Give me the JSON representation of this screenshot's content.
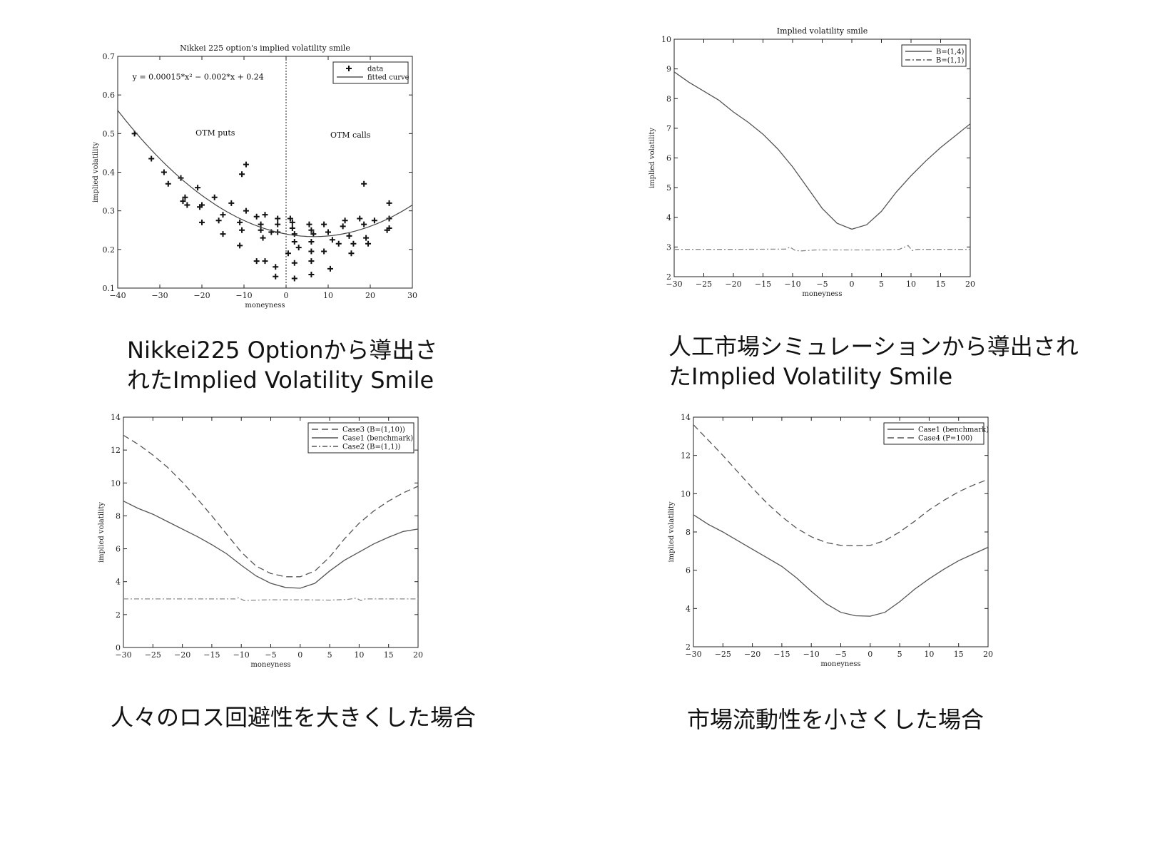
{
  "captions": {
    "c1": "Nikkei225 Optionから導出されたImplied Volatility Smile",
    "c1_line1": "Nikkei225 Optionから導出さ",
    "c1_line2": "れたImplied Volatility Smile",
    "c2_line1": "人工市場シミュレーションから導出され",
    "c2_line2": "たImplied Volatility Smile",
    "c3": "人々のロス回避性を大きくした場合",
    "c4": "市場流動性を小さくした場合"
  },
  "chart_data": [
    {
      "type": "scatter",
      "title": "Nikkei 225 option's implied volatility smile",
      "xlabel": "moneyness",
      "ylabel": "implied volatility",
      "xlim": [
        -40,
        30
      ],
      "ylim": [
        0.1,
        0.7
      ],
      "xticks": [
        -40,
        -30,
        -20,
        -10,
        0,
        10,
        20,
        30
      ],
      "yticks": [
        0.1,
        0.2,
        0.3,
        0.4,
        0.5,
        0.6,
        0.7
      ],
      "legend_position": "top-right",
      "annotations": [
        "y = 0.00015*x² − 0.002*x + 0.24",
        "OTM puts",
        "OTM calls"
      ],
      "vline_x": 0,
      "series": [
        {
          "name": "data",
          "style": "plus",
          "points": [
            [
              -36,
              0.5
            ],
            [
              -32,
              0.435
            ],
            [
              -29,
              0.4
            ],
            [
              -28,
              0.37
            ],
            [
              -25,
              0.385
            ],
            [
              -24.5,
              0.325
            ],
            [
              -24,
              0.335
            ],
            [
              -23.5,
              0.315
            ],
            [
              -21,
              0.36
            ],
            [
              -20.5,
              0.31
            ],
            [
              -20,
              0.315
            ],
            [
              -20,
              0.27
            ],
            [
              -17,
              0.335
            ],
            [
              -16,
              0.275
            ],
            [
              -15,
              0.29
            ],
            [
              -15,
              0.24
            ],
            [
              -13,
              0.32
            ],
            [
              -11,
              0.27
            ],
            [
              -11,
              0.21
            ],
            [
              -10.5,
              0.25
            ],
            [
              -10.5,
              0.395
            ],
            [
              -9.5,
              0.42
            ],
            [
              -9.5,
              0.3
            ],
            [
              -7,
              0.285
            ],
            [
              -7,
              0.17
            ],
            [
              -6,
              0.265
            ],
            [
              -6,
              0.25
            ],
            [
              -5.5,
              0.23
            ],
            [
              -5,
              0.29
            ],
            [
              -5,
              0.17
            ],
            [
              -3.5,
              0.245
            ],
            [
              -2.5,
              0.155
            ],
            [
              -2.5,
              0.13
            ],
            [
              -2,
              0.28
            ],
            [
              -2,
              0.265
            ],
            [
              -2,
              0.245
            ],
            [
              0.5,
              0.19
            ],
            [
              1,
              0.28
            ],
            [
              1.5,
              0.27
            ],
            [
              1.5,
              0.255
            ],
            [
              2,
              0.24
            ],
            [
              2,
              0.22
            ],
            [
              2,
              0.165
            ],
            [
              2,
              0.125
            ],
            [
              3,
              0.205
            ],
            [
              5.5,
              0.265
            ],
            [
              6,
              0.25
            ],
            [
              6,
              0.22
            ],
            [
              6,
              0.195
            ],
            [
              6,
              0.17
            ],
            [
              6,
              0.135
            ],
            [
              6.5,
              0.24
            ],
            [
              9,
              0.265
            ],
            [
              9,
              0.195
            ],
            [
              10,
              0.245
            ],
            [
              10.5,
              0.15
            ],
            [
              11,
              0.225
            ],
            [
              12.5,
              0.215
            ],
            [
              13.5,
              0.26
            ],
            [
              14,
              0.275
            ],
            [
              15,
              0.235
            ],
            [
              15.5,
              0.19
            ],
            [
              16,
              0.215
            ],
            [
              17.5,
              0.28
            ],
            [
              18.5,
              0.37
            ],
            [
              18.5,
              0.265
            ],
            [
              19,
              0.23
            ],
            [
              19.5,
              0.215
            ],
            [
              21,
              0.275
            ],
            [
              24,
              0.25
            ],
            [
              24.5,
              0.255
            ],
            [
              24.5,
              0.28
            ],
            [
              24.5,
              0.32
            ]
          ]
        },
        {
          "name": "fitted curve",
          "style": "solid",
          "formula": {
            "a": 0.00015,
            "b": -0.002,
            "c": 0.24
          }
        }
      ]
    },
    {
      "type": "line",
      "title": "Implied volatility smile",
      "xlabel": "moneyness",
      "ylabel": "implied volatility",
      "xlim": [
        -30,
        20
      ],
      "ylim": [
        2,
        10
      ],
      "xticks": [
        -30,
        -25,
        -20,
        -15,
        -10,
        -5,
        0,
        5,
        10,
        15,
        20
      ],
      "yticks": [
        2,
        3,
        4,
        5,
        6,
        7,
        8,
        9,
        10
      ],
      "legend_position": "top-right",
      "series": [
        {
          "name": "B=(1,4)",
          "style": "solid",
          "points": [
            [
              -30,
              8.9
            ],
            [
              -27.5,
              8.55
            ],
            [
              -25,
              8.25
            ],
            [
              -22.5,
              7.95
            ],
            [
              -20,
              7.55
            ],
            [
              -17.5,
              7.2
            ],
            [
              -15,
              6.8
            ],
            [
              -12.5,
              6.3
            ],
            [
              -10,
              5.7
            ],
            [
              -7.5,
              5.0
            ],
            [
              -5,
              4.3
            ],
            [
              -2.5,
              3.8
            ],
            [
              0,
              3.6
            ],
            [
              2.5,
              3.75
            ],
            [
              5,
              4.2
            ],
            [
              7.5,
              4.85
            ],
            [
              10,
              5.4
            ],
            [
              12.5,
              5.9
            ],
            [
              15,
              6.35
            ],
            [
              17.5,
              6.75
            ],
            [
              20,
              7.15
            ]
          ]
        },
        {
          "name": "B=(1,1)",
          "style": "dashdot",
          "points": [
            [
              -30,
              2.92
            ],
            [
              -20,
              2.92
            ],
            [
              -11,
              2.93
            ],
            [
              -10.5,
              3.0
            ],
            [
              -9.5,
              2.88
            ],
            [
              -8.5,
              2.87
            ],
            [
              -6,
              2.9
            ],
            [
              0,
              2.9
            ],
            [
              5,
              2.9
            ],
            [
              8,
              2.92
            ],
            [
              9.5,
              3.05
            ],
            [
              10.2,
              2.88
            ],
            [
              11,
              2.92
            ],
            [
              20,
              2.92
            ]
          ]
        }
      ]
    },
    {
      "type": "line",
      "title": "",
      "xlabel": "moneyness",
      "ylabel": "implied volatility",
      "xlim": [
        -30,
        20
      ],
      "ylim": [
        0,
        14
      ],
      "xticks": [
        -30,
        -25,
        -20,
        -15,
        -10,
        -5,
        0,
        5,
        10,
        15,
        20
      ],
      "yticks": [
        0,
        2,
        4,
        6,
        8,
        10,
        12,
        14
      ],
      "legend_position": "top-right",
      "series": [
        {
          "name": "Case3 (B=(1,10))",
          "style": "dashed",
          "points": [
            [
              -30,
              12.9
            ],
            [
              -27.5,
              12.35
            ],
            [
              -25,
              11.7
            ],
            [
              -22.5,
              10.95
            ],
            [
              -20,
              10.05
            ],
            [
              -17.5,
              9.05
            ],
            [
              -15,
              8.0
            ],
            [
              -12.5,
              6.9
            ],
            [
              -10,
              5.8
            ],
            [
              -7.5,
              4.95
            ],
            [
              -5,
              4.5
            ],
            [
              -2.5,
              4.3
            ],
            [
              0,
              4.3
            ],
            [
              2.5,
              4.65
            ],
            [
              5,
              5.5
            ],
            [
              7.5,
              6.6
            ],
            [
              10,
              7.55
            ],
            [
              12.5,
              8.3
            ],
            [
              15,
              8.9
            ],
            [
              17.5,
              9.4
            ],
            [
              20,
              9.8
            ]
          ]
        },
        {
          "name": "Case1 (benchmark)",
          "style": "solid",
          "points": [
            [
              -30,
              8.9
            ],
            [
              -27.5,
              8.45
            ],
            [
              -25,
              8.1
            ],
            [
              -22.5,
              7.65
            ],
            [
              -20,
              7.2
            ],
            [
              -17.5,
              6.75
            ],
            [
              -15,
              6.25
            ],
            [
              -12.5,
              5.7
            ],
            [
              -10,
              5.0
            ],
            [
              -7.5,
              4.35
            ],
            [
              -5,
              3.9
            ],
            [
              -2.5,
              3.65
            ],
            [
              0,
              3.6
            ],
            [
              2.5,
              3.9
            ],
            [
              5,
              4.65
            ],
            [
              7.5,
              5.3
            ],
            [
              10,
              5.8
            ],
            [
              12.5,
              6.3
            ],
            [
              15,
              6.7
            ],
            [
              17.5,
              7.05
            ],
            [
              20,
              7.2
            ]
          ]
        },
        {
          "name": "Case2 (B=(1,1))",
          "style": "dashdot",
          "points": [
            [
              -30,
              2.95
            ],
            [
              -20,
              2.95
            ],
            [
              -11,
              2.95
            ],
            [
              -10.5,
              3.02
            ],
            [
              -9.5,
              2.85
            ],
            [
              -8.5,
              2.87
            ],
            [
              -5,
              2.9
            ],
            [
              0,
              2.9
            ],
            [
              5,
              2.88
            ],
            [
              8,
              2.92
            ],
            [
              9.5,
              3.0
            ],
            [
              10.3,
              2.85
            ],
            [
              11,
              2.95
            ],
            [
              20,
              2.95
            ]
          ]
        }
      ]
    },
    {
      "type": "line",
      "title": "",
      "xlabel": "moneyness",
      "ylabel": "implied volatility",
      "xlim": [
        -30,
        20
      ],
      "ylim": [
        2,
        14
      ],
      "xticks": [
        -30,
        -25,
        -20,
        -15,
        -10,
        -5,
        0,
        5,
        10,
        15,
        20
      ],
      "yticks": [
        2,
        4,
        6,
        8,
        10,
        12,
        14
      ],
      "legend_position": "top-right",
      "series": [
        {
          "name": "Case1 (benchmark)",
          "style": "solid",
          "points": [
            [
              -30,
              8.9
            ],
            [
              -27.5,
              8.4
            ],
            [
              -25,
              8.0
            ],
            [
              -22.5,
              7.55
            ],
            [
              -20,
              7.1
            ],
            [
              -17.5,
              6.65
            ],
            [
              -15,
              6.2
            ],
            [
              -12.5,
              5.6
            ],
            [
              -10,
              4.9
            ],
            [
              -7.5,
              4.25
            ],
            [
              -5,
              3.8
            ],
            [
              -2.5,
              3.62
            ],
            [
              0,
              3.6
            ],
            [
              2.5,
              3.8
            ],
            [
              5,
              4.35
            ],
            [
              7.5,
              5.0
            ],
            [
              10,
              5.55
            ],
            [
              12.5,
              6.05
            ],
            [
              15,
              6.5
            ],
            [
              17.5,
              6.85
            ],
            [
              20,
              7.2
            ]
          ]
        },
        {
          "name": "Case4 (P=100)",
          "style": "dashed",
          "points": [
            [
              -30,
              13.6
            ],
            [
              -27.5,
              12.8
            ],
            [
              -25,
              12.0
            ],
            [
              -22.5,
              11.15
            ],
            [
              -20,
              10.3
            ],
            [
              -17.5,
              9.5
            ],
            [
              -15,
              8.8
            ],
            [
              -12.5,
              8.2
            ],
            [
              -10,
              7.75
            ],
            [
              -7.5,
              7.45
            ],
            [
              -5,
              7.3
            ],
            [
              -2.5,
              7.28
            ],
            [
              0,
              7.3
            ],
            [
              2.5,
              7.55
            ],
            [
              5,
              8.0
            ],
            [
              7.5,
              8.55
            ],
            [
              10,
              9.15
            ],
            [
              12.5,
              9.65
            ],
            [
              15,
              10.1
            ],
            [
              17.5,
              10.45
            ],
            [
              20,
              10.75
            ]
          ]
        }
      ]
    }
  ]
}
